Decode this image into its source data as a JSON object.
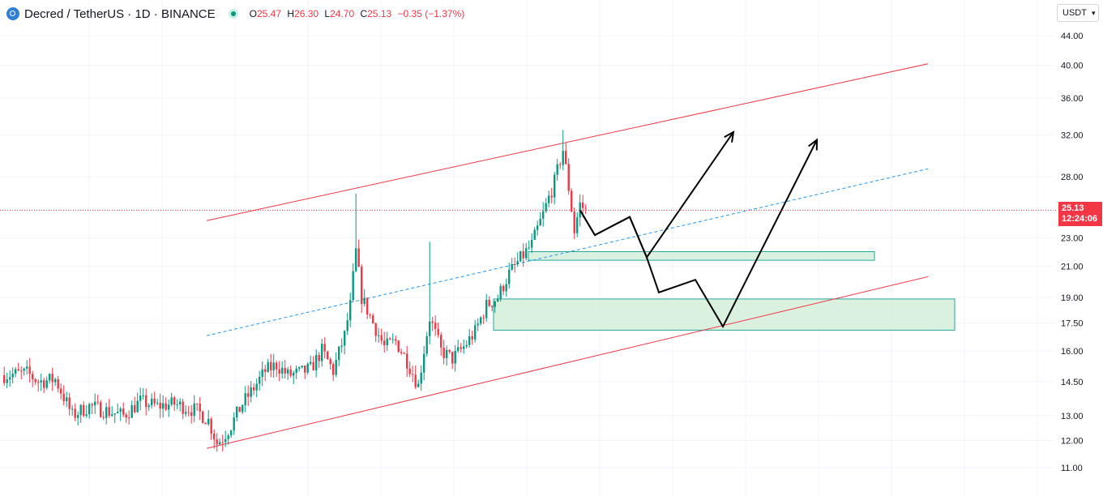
{
  "header": {
    "title": "Decred / TetherUS · 1D · BINANCE",
    "ohlc": {
      "open_label": "O",
      "open": "25.47",
      "high_label": "H",
      "high": "26.30",
      "low_label": "L",
      "low": "24.70",
      "close_label": "C",
      "close": "25.13",
      "change": "−0.35 (−1.37%)"
    }
  },
  "currency_selector": {
    "value": "USDT"
  },
  "last_price": {
    "price": "25.13",
    "countdown": "12:24:06"
  },
  "colors": {
    "up": "#089981",
    "down": "#f23645",
    "channel": "#f23645",
    "midline": "#2196f3",
    "zone_fill": "#d3eedb",
    "zone_border": "#26a69a",
    "projection": "#000000",
    "grid": "#f0f3fa"
  },
  "chart_data": {
    "type": "candlestick",
    "symbol": "Decred / TetherUS",
    "interval": "1D",
    "exchange": "BINANCE",
    "scale": "log",
    "price_axis": {
      "ticks": [
        11.0,
        12.0,
        13.0,
        14.5,
        16.0,
        17.5,
        19.0,
        21.0,
        23.0,
        25.13,
        28.0,
        32.0,
        36.0,
        40.0,
        44.0
      ],
      "tick_labels": [
        "11.00",
        "12.00",
        "13.00",
        "14.50",
        "16.00",
        "17.50",
        "19.00",
        "21.00",
        "23.00",
        "25.13",
        "28.00",
        "32.00",
        "36.00",
        "40.00",
        "44.00"
      ],
      "range": [
        10.2,
        46
      ]
    },
    "bars_shown": 156,
    "close_path": [
      [
        0,
        14.8
      ],
      [
        8,
        14.9
      ],
      [
        12,
        14.5
      ],
      [
        18,
        14.6
      ],
      [
        24,
        13.0
      ],
      [
        30,
        13.4
      ],
      [
        36,
        13.2
      ],
      [
        42,
        13.0
      ],
      [
        48,
        13.6
      ],
      [
        54,
        13.4
      ],
      [
        60,
        13.5
      ],
      [
        68,
        13.2
      ],
      [
        72,
        12.8
      ],
      [
        75,
        11.9
      ],
      [
        77,
        12.1
      ],
      [
        80,
        12.6
      ],
      [
        84,
        13.5
      ],
      [
        88,
        14.2
      ],
      [
        92,
        15.0
      ],
      [
        96,
        15.3
      ],
      [
        100,
        14.8
      ],
      [
        104,
        14.9
      ],
      [
        108,
        15.1
      ],
      [
        112,
        16.0
      ],
      [
        116,
        15.0
      ],
      [
        120,
        16.8
      ],
      [
        122,
        18.5
      ],
      [
        124,
        22.0
      ],
      [
        126,
        19.0
      ],
      [
        130,
        17.5
      ],
      [
        134,
        16.2
      ],
      [
        138,
        16.5
      ],
      [
        142,
        15.5
      ],
      [
        146,
        14.3
      ],
      [
        150,
        17.8
      ],
      [
        154,
        16.0
      ],
      [
        158,
        15.6
      ],
      [
        162,
        16.2
      ],
      [
        166,
        17.0
      ],
      [
        170,
        18.5
      ],
      [
        174,
        19.0
      ],
      [
        178,
        20.5
      ],
      [
        182,
        21.5
      ],
      [
        186,
        22.5
      ],
      [
        190,
        24.8
      ],
      [
        194,
        27.5
      ],
      [
        197,
        30.5
      ],
      [
        199,
        27.0
      ],
      [
        201,
        23.5
      ],
      [
        203,
        25.6
      ],
      [
        205,
        25.1
      ]
    ],
    "wicks": {
      "high_spike_1": 26.5,
      "high_spike_2": 22.7,
      "all_time_high_in_view": 32.5,
      "range_low": 11.5
    },
    "channel": {
      "upper": [
        [
          0,
          24.3
        ],
        [
          240,
          40.2
        ]
      ],
      "lower": [
        [
          0,
          11.7
        ],
        [
          240,
          20.3
        ]
      ],
      "midline_dashed": [
        [
          0,
          16.8
        ],
        [
          240,
          28.7
        ]
      ]
    },
    "demand_zones": [
      {
        "top": 22.0,
        "bottom": 21.4
      },
      {
        "top": 18.9,
        "bottom": 17.1
      }
    ],
    "projections": [
      [
        25.1,
        23.2,
        24.6,
        21.6,
        32.3
      ],
      [
        25.1,
        23.2,
        24.6,
        21.6,
        19.3,
        20.1,
        17.3,
        31.5
      ]
    ],
    "last_price": 25.13
  }
}
